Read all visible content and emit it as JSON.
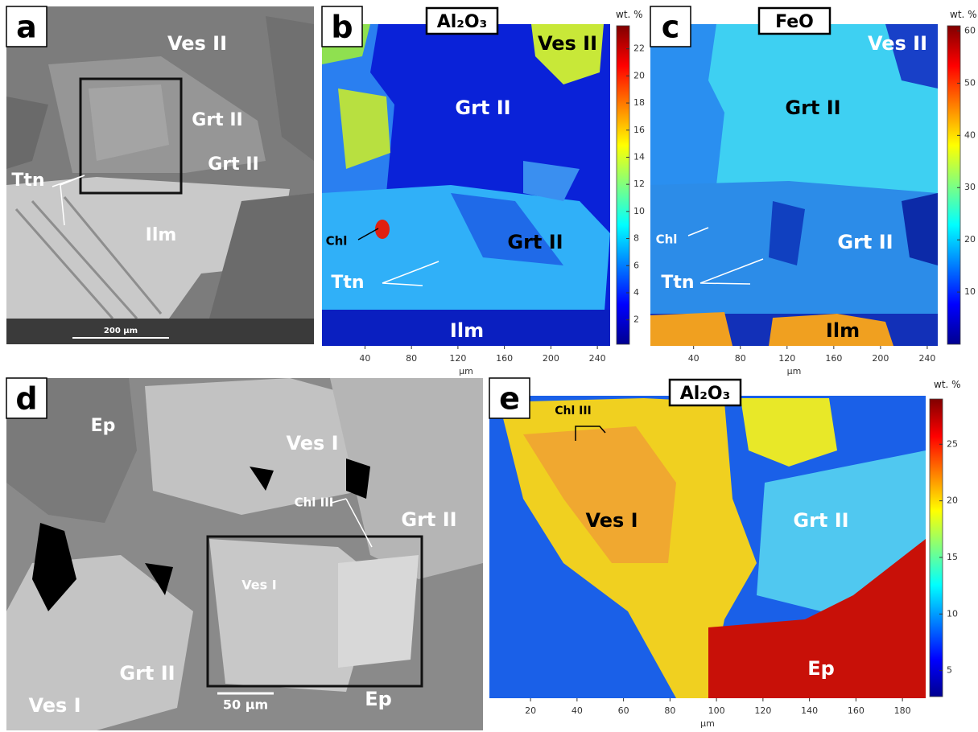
{
  "panels": [
    {
      "letter": "a",
      "labels": [
        "Ves II",
        "Grt II",
        "Grt II",
        "Ttn",
        "Ilm"
      ],
      "scale_bar": "200 μm"
    },
    {
      "letter": "b",
      "title": "Al₂O₃",
      "unit": "wt. %",
      "clim": [
        0.2,
        23.7
      ],
      "cticks": [
        2,
        4,
        6,
        8,
        10,
        12,
        14,
        16,
        18,
        20,
        22
      ],
      "x_label": "μm",
      "xlim": [
        3,
        251
      ],
      "xticks": [
        40,
        80,
        120,
        160,
        200,
        240
      ],
      "labels": [
        "Ves II",
        "Grt II",
        "Chl",
        "Grt II",
        "Ttn",
        "Ilm"
      ]
    },
    {
      "letter": "c",
      "title": "FeO",
      "unit": "wt. %",
      "clim": [
        0,
        61
      ],
      "cticks": [
        10,
        20,
        30,
        40,
        50,
        60
      ],
      "x_label": "μm",
      "xlim": [
        3,
        249
      ],
      "xticks": [
        40,
        80,
        120,
        160,
        200,
        240
      ],
      "labels": [
        "Ves II",
        "Grt II",
        "Chl",
        "Grt II",
        "Ttn",
        "Ilm"
      ]
    },
    {
      "letter": "d",
      "labels": [
        "Ep",
        "Ves I",
        "Chl III",
        "Grt II",
        "Ves I",
        "Grt II",
        "Ves I",
        "Ep"
      ],
      "scale_bar": "50 μm"
    },
    {
      "letter": "e",
      "title": "Al₂O₃",
      "unit": "wt. %",
      "clim": [
        2.7,
        29
      ],
      "cticks": [
        5,
        10,
        15,
        20,
        25
      ],
      "x_label": "μm",
      "xlim": [
        2.3,
        190
      ],
      "xticks": [
        20,
        40,
        60,
        80,
        100,
        120,
        140,
        160,
        180
      ],
      "labels": [
        "Chl III",
        "Ves I",
        "Grt II",
        "Ep"
      ]
    }
  ]
}
